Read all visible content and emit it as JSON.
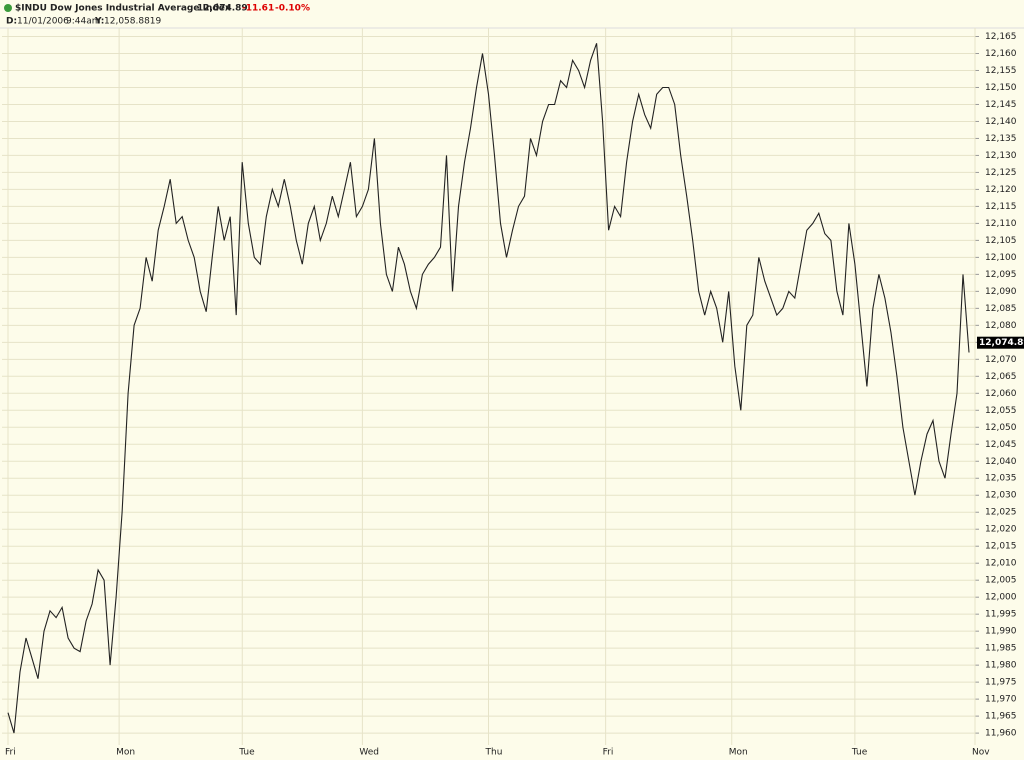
{
  "header": {
    "price_change": "-11.61",
    "percent_change": "-0.10%",
    "date_label": "D:",
    "date": "11/01/2006",
    "time": "9:44am",
    "y_label": "Y:",
    "y_value": "12,058.8819"
  },
  "chart_data": {
    "type": "line",
    "title": "$INDU Dow Jones Industrial Average Index",
    "color": "#222222",
    "grid": true,
    "last": {
      "value": 12074.89,
      "label": "12,074.89"
    },
    "x": [
      0,
      1,
      2,
      3,
      4,
      5,
      6,
      7,
      8,
      9,
      10,
      11,
      12,
      13,
      14,
      15,
      16,
      17,
      18,
      19,
      20,
      21,
      22,
      23,
      24,
      25,
      26,
      27,
      28,
      29,
      30,
      31,
      32,
      33,
      34,
      35,
      36,
      37,
      38,
      39,
      40,
      41,
      42,
      43,
      44,
      45,
      46,
      47,
      48,
      49,
      50,
      51,
      52,
      53,
      54,
      55,
      56,
      57,
      58,
      59,
      60,
      61,
      62,
      63,
      64,
      65,
      66,
      67,
      68,
      69,
      70,
      71,
      72,
      73,
      74,
      75,
      76,
      77,
      78,
      79,
      80,
      81,
      82,
      83,
      84,
      85,
      86,
      87,
      88,
      89,
      90,
      91,
      92,
      93,
      94,
      95,
      96,
      97,
      98,
      99,
      100,
      101,
      102,
      103,
      104,
      105,
      106,
      107,
      108,
      109,
      110,
      111,
      112,
      113,
      114,
      115,
      116,
      117,
      118,
      119,
      120,
      121,
      122,
      123,
      124,
      125,
      126,
      127,
      128,
      129,
      130,
      131,
      132,
      133,
      134,
      135,
      136,
      137,
      138,
      139,
      140,
      141,
      142,
      143,
      144,
      145,
      146,
      147,
      148,
      149,
      150,
      151,
      152,
      153,
      154,
      155,
      156,
      157,
      158,
      159,
      160
    ],
    "values": [
      11966,
      11960,
      11978,
      11988,
      11982,
      11976,
      11990,
      11996,
      11994,
      11997,
      11988,
      11985,
      11984,
      11993,
      11998,
      12008,
      12005,
      11980,
      12000,
      12025,
      12060,
      12080,
      12085,
      12100,
      12093,
      12108,
      12115,
      12123,
      12110,
      12112,
      12105,
      12100,
      12090,
      12084,
      12100,
      12115,
      12105,
      12112,
      12083,
      12128,
      12110,
      12100,
      12098,
      12112,
      12120,
      12115,
      12123,
      12115,
      12105,
      12098,
      12110,
      12115,
      12105,
      12110,
      12118,
      12112,
      12120,
      12128,
      12112,
      12115,
      12120,
      12135,
      12110,
      12095,
      12090,
      12103,
      12098,
      12090,
      12085,
      12095,
      12098,
      12100,
      12103,
      12130,
      12090,
      12115,
      12128,
      12138,
      12150,
      12160,
      12148,
      12130,
      12110,
      12100,
      12108,
      12115,
      12118,
      12135,
      12130,
      12140,
      12145,
      12145,
      12152,
      12150,
      12158,
      12155,
      12150,
      12158,
      12163,
      12140,
      12108,
      12115,
      12112,
      12128,
      12140,
      12148,
      12142,
      12138,
      12148,
      12150,
      12150,
      12145,
      12130,
      12118,
      12105,
      12090,
      12083,
      12090,
      12085,
      12075,
      12090,
      12068,
      12055,
      12080,
      12083,
      12100,
      12093,
      12088,
      12083,
      12085,
      12090,
      12088,
      12098,
      12108,
      12110,
      12113,
      12107,
      12105,
      12090,
      12083,
      12110,
      12098,
      12080,
      12062,
      12085,
      12095,
      12088,
      12078,
      12065,
      12050,
      12040,
      12030,
      12040,
      12048,
      12052,
      12040,
      12035,
      12048,
      12060,
      12095,
      12072
    ],
    "xlim": [
      -1,
      161
    ],
    "xticks": [
      {
        "value": 0,
        "label": "Fri"
      },
      {
        "value": 18.5,
        "label": "Mon"
      },
      {
        "value": 39,
        "label": "Tue"
      },
      {
        "value": 59,
        "label": "Wed"
      },
      {
        "value": 80,
        "label": "Thu"
      },
      {
        "value": 99.5,
        "label": "Fri"
      },
      {
        "value": 120.5,
        "label": "Mon"
      },
      {
        "value": 141,
        "label": "Tue"
      },
      {
        "value": 161,
        "label": "Nov"
      }
    ],
    "ylim": [
      11956.5,
      12167.5
    ],
    "yticks": [
      {
        "value": 11960,
        "label": "11,960"
      },
      {
        "value": 11965,
        "label": "11,965"
      },
      {
        "value": 11970,
        "label": "11,970"
      },
      {
        "value": 11975,
        "label": "11,975"
      },
      {
        "value": 11980,
        "label": "11,980"
      },
      {
        "value": 11985,
        "label": "11,985"
      },
      {
        "value": 11990,
        "label": "11,990"
      },
      {
        "value": 11995,
        "label": "11,995"
      },
      {
        "value": 12000,
        "label": "12,000"
      },
      {
        "value": 12005,
        "label": "12,005"
      },
      {
        "value": 12010,
        "label": "12,010"
      },
      {
        "value": 12015,
        "label": "12,015"
      },
      {
        "value": 12020,
        "label": "12,020"
      },
      {
        "value": 12025,
        "label": "12,025"
      },
      {
        "value": 12030,
        "label": "12,030"
      },
      {
        "value": 12035,
        "label": "12,035"
      },
      {
        "value": 12040,
        "label": "12,040"
      },
      {
        "value": 12045,
        "label": "12,045"
      },
      {
        "value": 12050,
        "label": "12,050"
      },
      {
        "value": 12055,
        "label": "12,055"
      },
      {
        "value": 12060,
        "label": "12,060"
      },
      {
        "value": 12065,
        "label": "12,065"
      },
      {
        "value": 12070,
        "label": "12,070"
      },
      {
        "value": 12075,
        "label": "12,075"
      },
      {
        "value": 12080,
        "label": "12,080"
      },
      {
        "value": 12085,
        "label": "12,085"
      },
      {
        "value": 12090,
        "label": "12,090"
      },
      {
        "value": 12095,
        "label": "12,095"
      },
      {
        "value": 12100,
        "label": "12,100"
      },
      {
        "value": 12105,
        "label": "12,105"
      },
      {
        "value": 12110,
        "label": "12,110"
      },
      {
        "value": 12115,
        "label": "12,115"
      },
      {
        "value": 12120,
        "label": "12,120"
      },
      {
        "value": 12125,
        "label": "12,125"
      },
      {
        "value": 12130,
        "label": "12,130"
      },
      {
        "value": 12135,
        "label": "12,135"
      },
      {
        "value": 12140,
        "label": "12,140"
      },
      {
        "value": 12145,
        "label": "12,145"
      },
      {
        "value": 12150,
        "label": "12,150"
      },
      {
        "value": 12155,
        "label": "12,155"
      },
      {
        "value": 12160,
        "label": "12,160"
      },
      {
        "value": 12165,
        "label": "12,165"
      }
    ]
  }
}
